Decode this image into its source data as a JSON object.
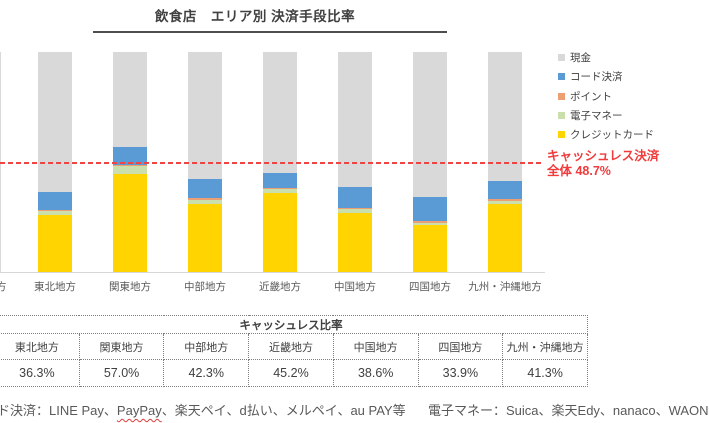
{
  "title": {
    "text": "飲食店　エリア別 決済手段比率"
  },
  "chart_data": {
    "type": "bar",
    "stacked": true,
    "unit": "%",
    "title": "飲食店　エリア別 決済手段比率",
    "categories": [
      "東北地方",
      "関東地方",
      "中部地方",
      "近畿地方",
      "中国地方",
      "四国地方",
      "九州・沖縄地方"
    ],
    "series": [
      {
        "name": "クレジットカード",
        "color": "#FFD400",
        "values": [
          25.9,
          44.5,
          30.9,
          36.1,
          26.6,
          21.2,
          30.9
        ]
      },
      {
        "name": "電子マネー",
        "color": "#CBDFAD",
        "values": [
          2.1,
          3.7,
          2.0,
          1.8,
          2.1,
          1.0,
          1.5
        ]
      },
      {
        "name": "ポイント",
        "color": "#ED9F74",
        "values": [
          0.3,
          0.5,
          0.6,
          0.5,
          0.5,
          1.1,
          0.6
        ]
      },
      {
        "name": "コード決済",
        "color": "#5B9BD5",
        "values": [
          8.0,
          8.3,
          8.8,
          6.8,
          9.4,
          10.6,
          8.3
        ]
      },
      {
        "name": "現金",
        "color": "#D9D9D9",
        "values": [
          63.7,
          43.0,
          57.7,
          54.8,
          61.4,
          66.1,
          58.7
        ]
      }
    ],
    "ylim": [
      0,
      100
    ],
    "grid": false,
    "legend_position": "right",
    "annotation_line": {
      "value": 48.7,
      "color": "#EF4444",
      "style": "dashed",
      "label": "キャッシュレス決済 全体 48.7%"
    }
  },
  "legend": {
    "items": [
      {
        "label": "現金",
        "color": "#D9D9D9"
      },
      {
        "label": "コード決済",
        "color": "#5B9BD5"
      },
      {
        "label": "ポイント",
        "color": "#ED9F74"
      },
      {
        "label": "電子マネー",
        "color": "#CBDFAD"
      },
      {
        "label": "クレジットカード",
        "color": "#FFD400"
      }
    ]
  },
  "annotation": {
    "line1": "キャッシュレス決済",
    "line2": "全体 48.7%"
  },
  "axis": {
    "cut_left_label": "方"
  },
  "table": {
    "title": "キャッシュレス比率",
    "columns": [
      "東北地方",
      "関東地方",
      "中部地方",
      "近畿地方",
      "中国地方",
      "四国地方",
      "九州・沖縄地方"
    ],
    "values": [
      "36.3%",
      "57.0%",
      "42.3%",
      "45.2%",
      "38.6%",
      "33.9%",
      "41.3%"
    ]
  },
  "footnotes": {
    "left_parts": {
      "p1": "ド決済：LINE Pay、",
      "p2": "PayPay",
      "p3": "、楽天ペイ、d払い、メルペイ、au PAY等"
    },
    "right": "電子マネー：Suica、楽天Edy、nanaco、WAON"
  }
}
